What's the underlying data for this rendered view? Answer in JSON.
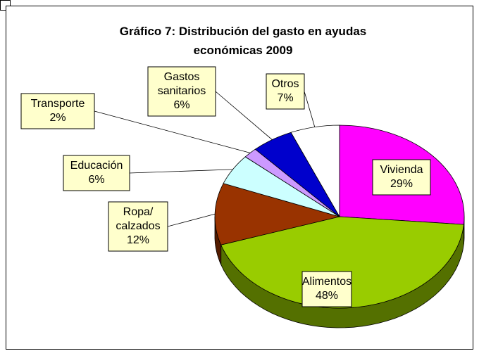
{
  "chart_data": {
    "type": "pie3d",
    "title": "Gráfico 7: Distribución del gasto en ayudas económicas 2009",
    "categories": [
      "Vivienda",
      "Alimentos",
      "Ropa/calzados",
      "Educación",
      "Transporte",
      "Gastos sanitarios",
      "Otros"
    ],
    "values": [
      29,
      48,
      12,
      6,
      2,
      6,
      7
    ],
    "value_labels": [
      "29%",
      "48%",
      "12%",
      "6%",
      "2%",
      "6%",
      "7%"
    ],
    "colors": [
      "#ff00ff",
      "#99cc00",
      "#993300",
      "#ccffff",
      "#cc99ff",
      "#0000cc",
      "#ffffff"
    ]
  }
}
